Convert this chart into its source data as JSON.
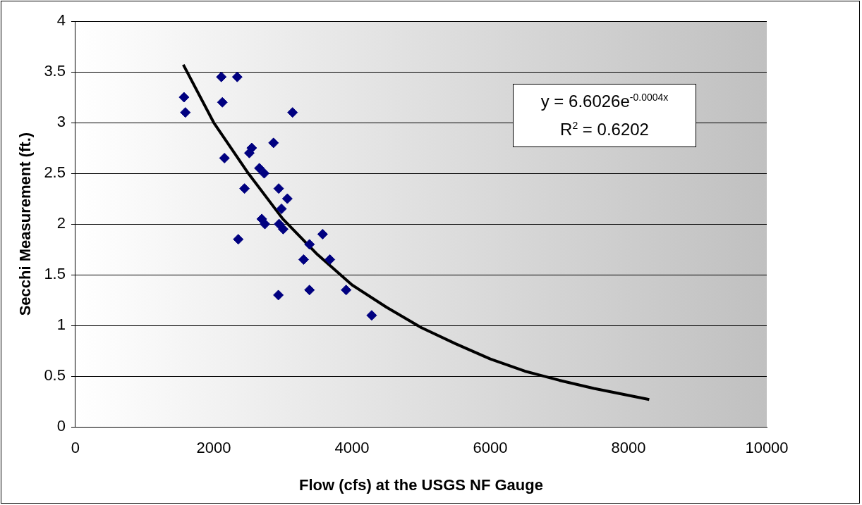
{
  "chart_data": {
    "type": "scatter",
    "xlabel": "Flow (cfs) at the USGS NF Gauge",
    "ylabel": "Secchi Measurement (ft.)",
    "xlim": [
      0,
      10000
    ],
    "xticks": [
      0,
      2000,
      4000,
      6000,
      8000,
      10000
    ],
    "ylim": [
      0,
      4
    ],
    "yticks": [
      0,
      0.5,
      1,
      1.5,
      2,
      2.5,
      3,
      3.5,
      4
    ],
    "grid": "y",
    "legend": false,
    "marker": "diamond",
    "annotations": [
      "y = 6.6026e$^{-0.0004x}$",
      "R$^{2}$ = 0.6202"
    ],
    "series": [
      {
        "color": "#000080",
        "x": [
          2110,
          2340,
          1570,
          2125,
          1590,
          3140,
          2865,
          2550,
          2515,
          2155,
          2660,
          2730,
          2445,
          2940,
          3065,
          2980,
          2695,
          2740,
          2945,
          3005,
          2355,
          3575,
          3385,
          3300,
          3680,
          2935,
          3385,
          3915,
          4285
        ],
        "values": [
          3.45,
          3.45,
          3.25,
          3.2,
          3.1,
          3.1,
          2.8,
          2.75,
          2.7,
          2.65,
          2.55,
          2.5,
          2.35,
          2.35,
          2.25,
          2.15,
          2.05,
          2.0,
          2.0,
          1.95,
          1.85,
          1.9,
          1.8,
          1.65,
          1.65,
          1.3,
          1.35,
          1.35,
          1.1
        ]
      },
      {
        "type": "line",
        "color": "#000000",
        "marker": "none",
        "x": [
          1560,
          2000,
          2500,
          3000,
          3500,
          4000,
          4500,
          5000,
          5500,
          6000,
          6500,
          7000,
          7500,
          8300
        ],
        "values": [
          3.57,
          3.0,
          2.5,
          2.05,
          1.7,
          1.4,
          1.18,
          0.98,
          0.82,
          0.67,
          0.55,
          0.46,
          0.38,
          0.27
        ]
      }
    ]
  }
}
